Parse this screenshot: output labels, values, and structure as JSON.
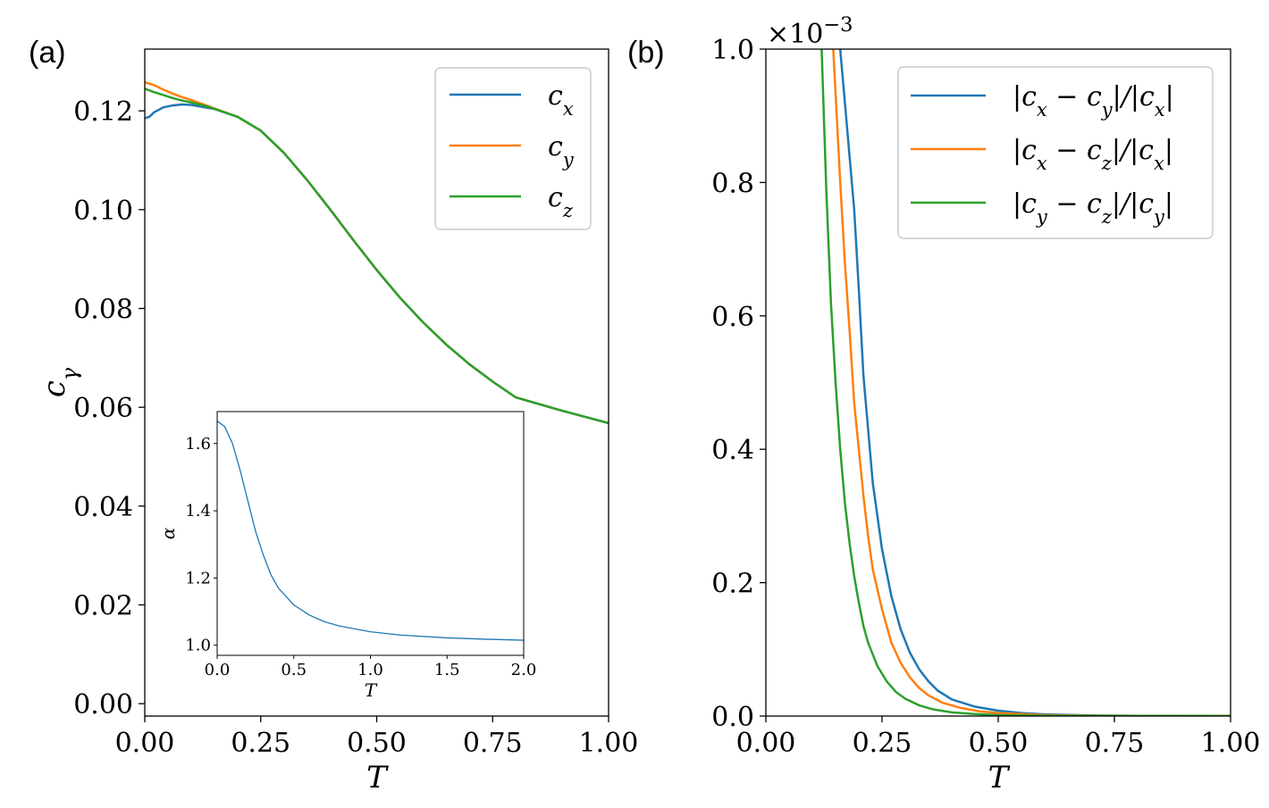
{
  "panels": {
    "a": {
      "label": "(a)"
    },
    "b": {
      "label": "(b)"
    }
  },
  "colors": {
    "blue": "#1f77b4",
    "orange": "#ff7f0e",
    "green": "#2ca02c"
  },
  "chart_data": [
    {
      "id": "a",
      "type": "line",
      "title": "",
      "xlabel": "T",
      "ylabel": "c_γ",
      "xlim": [
        0,
        1
      ],
      "ylim": [
        -0.0025,
        0.1325
      ],
      "xticks": [
        0,
        0.25,
        0.5,
        0.75,
        1
      ],
      "xtick_labels": [
        "0.00",
        "0.25",
        "0.50",
        "0.75",
        "1.00"
      ],
      "yticks": [
        0,
        0.02,
        0.04,
        0.06,
        0.08,
        0.1,
        0.12
      ],
      "ytick_labels": [
        "0.00",
        "0.02",
        "0.04",
        "0.06",
        "0.08",
        "0.10",
        "0.12"
      ],
      "legend_position": "top-right",
      "series": [
        {
          "name": "c_x",
          "color": "#1f77b4",
          "points": [
            [
              0,
              0.1185
            ],
            [
              0.01,
              0.1188
            ],
            [
              0.02,
              0.1197
            ],
            [
              0.04,
              0.1207
            ],
            [
              0.06,
              0.1211
            ],
            [
              0.08,
              0.1213
            ],
            [
              0.1,
              0.1212
            ],
            [
              0.13,
              0.1207
            ],
            [
              0.15,
              0.1204
            ],
            [
              0.2,
              0.1188
            ],
            [
              0.25,
              0.116
            ],
            [
              0.3,
              0.1115
            ],
            [
              0.35,
              0.106
            ],
            [
              0.4,
              0.1
            ],
            [
              0.45,
              0.0938
            ],
            [
              0.5,
              0.0878
            ],
            [
              0.55,
              0.0822
            ],
            [
              0.6,
              0.0772
            ],
            [
              0.65,
              0.0727
            ],
            [
              0.7,
              0.0687
            ],
            [
              0.75,
              0.0652
            ],
            [
              0.8,
              0.062
            ],
            [
              0.9,
              0.0593
            ],
            [
              1.0,
              0.0568
            ]
          ]
        },
        {
          "name": "c_y",
          "color": "#ff7f0e",
          "points": [
            [
              0,
              0.1258
            ],
            [
              0.02,
              0.1252
            ],
            [
              0.04,
              0.1243
            ],
            [
              0.06,
              0.1235
            ],
            [
              0.08,
              0.1228
            ],
            [
              0.1,
              0.1222
            ],
            [
              0.13,
              0.1212
            ],
            [
              0.15,
              0.1205
            ],
            [
              0.2,
              0.1188
            ],
            [
              0.25,
              0.116
            ],
            [
              0.3,
              0.1115
            ],
            [
              0.35,
              0.106
            ],
            [
              0.4,
              0.1
            ],
            [
              0.45,
              0.0938
            ],
            [
              0.5,
              0.0878
            ],
            [
              0.55,
              0.0822
            ],
            [
              0.6,
              0.0772
            ],
            [
              0.65,
              0.0727
            ],
            [
              0.7,
              0.0687
            ],
            [
              0.75,
              0.0652
            ],
            [
              0.8,
              0.062
            ],
            [
              0.9,
              0.0593
            ],
            [
              1.0,
              0.0568
            ]
          ]
        },
        {
          "name": "c_z",
          "color": "#2ca02c",
          "points": [
            [
              0,
              0.1245
            ],
            [
              0.02,
              0.1238
            ],
            [
              0.04,
              0.1232
            ],
            [
              0.06,
              0.1226
            ],
            [
              0.08,
              0.1221
            ],
            [
              0.1,
              0.1217
            ],
            [
              0.13,
              0.121
            ],
            [
              0.15,
              0.1204
            ],
            [
              0.2,
              0.1188
            ],
            [
              0.25,
              0.116
            ],
            [
              0.3,
              0.1115
            ],
            [
              0.35,
              0.106
            ],
            [
              0.4,
              0.1
            ],
            [
              0.45,
              0.0938
            ],
            [
              0.5,
              0.0878
            ],
            [
              0.55,
              0.0822
            ],
            [
              0.6,
              0.0772
            ],
            [
              0.65,
              0.0727
            ],
            [
              0.7,
              0.0687
            ],
            [
              0.75,
              0.0652
            ],
            [
              0.8,
              0.062
            ],
            [
              0.9,
              0.0593
            ],
            [
              1.0,
              0.0568
            ]
          ]
        }
      ]
    },
    {
      "id": "a-inset",
      "type": "line",
      "xlabel": "T",
      "ylabel": "α",
      "xlim": [
        0,
        2
      ],
      "ylim": [
        0.97,
        1.695
      ],
      "xticks": [
        0,
        0.5,
        1,
        1.5,
        2
      ],
      "xtick_labels": [
        "0.0",
        "0.5",
        "1.0",
        "1.5",
        "2.0"
      ],
      "yticks": [
        1.0,
        1.2,
        1.4,
        1.6
      ],
      "ytick_labels": [
        "1.0",
        "1.2",
        "1.4",
        "1.6"
      ],
      "series": [
        {
          "name": "alpha",
          "color": "#1f77b4",
          "points": [
            [
              0,
              1.667
            ],
            [
              0.05,
              1.65
            ],
            [
              0.1,
              1.6
            ],
            [
              0.15,
              1.52
            ],
            [
              0.2,
              1.43
            ],
            [
              0.25,
              1.34
            ],
            [
              0.3,
              1.27
            ],
            [
              0.35,
              1.21
            ],
            [
              0.4,
              1.17
            ],
            [
              0.5,
              1.12
            ],
            [
              0.6,
              1.09
            ],
            [
              0.7,
              1.07
            ],
            [
              0.8,
              1.057
            ],
            [
              1.0,
              1.04
            ],
            [
              1.2,
              1.03
            ],
            [
              1.5,
              1.022
            ],
            [
              1.75,
              1.018
            ],
            [
              2.0,
              1.015
            ]
          ]
        }
      ]
    },
    {
      "id": "b",
      "type": "line",
      "xlabel": "T",
      "ylabel": "",
      "multiplier_label": "×10",
      "multiplier_exponent": "−3",
      "xlim": [
        0,
        1
      ],
      "ylim": [
        0,
        1.0
      ],
      "xticks": [
        0,
        0.25,
        0.5,
        0.75,
        1
      ],
      "xtick_labels": [
        "0.00",
        "0.25",
        "0.50",
        "0.75",
        "1.00"
      ],
      "yticks": [
        0,
        0.2,
        0.4,
        0.6,
        0.8,
        1.0
      ],
      "ytick_labels": [
        "0.0",
        "0.2",
        "0.4",
        "0.6",
        "0.8",
        "1.0"
      ],
      "legend_position": "top-right",
      "series": [
        {
          "name": "|c_x − c_y|/|c_x|",
          "color": "#1f77b4",
          "points": [
            [
              0.16,
              1.0
            ],
            [
              0.19,
              0.76
            ],
            [
              0.2,
              0.64
            ],
            [
              0.21,
              0.51
            ],
            [
              0.22,
              0.43
            ],
            [
              0.23,
              0.35
            ],
            [
              0.25,
              0.25
            ],
            [
              0.27,
              0.18
            ],
            [
              0.29,
              0.13
            ],
            [
              0.31,
              0.095
            ],
            [
              0.33,
              0.07
            ],
            [
              0.35,
              0.052
            ],
            [
              0.37,
              0.038
            ],
            [
              0.4,
              0.025
            ],
            [
              0.45,
              0.014
            ],
            [
              0.5,
              0.008
            ],
            [
              0.55,
              0.0045
            ],
            [
              0.6,
              0.0025
            ],
            [
              0.7,
              0.0008
            ],
            [
              0.8,
              0.0003
            ],
            [
              1.0,
              0.0001
            ]
          ]
        },
        {
          "name": "|c_x − c_z|/|c_x|",
          "color": "#ff7f0e",
          "points": [
            [
              0.145,
              1.0
            ],
            [
              0.16,
              0.8
            ],
            [
              0.17,
              0.68
            ],
            [
              0.18,
              0.58
            ],
            [
              0.19,
              0.47
            ],
            [
              0.2,
              0.4
            ],
            [
              0.21,
              0.33
            ],
            [
              0.22,
              0.27
            ],
            [
              0.23,
              0.22
            ],
            [
              0.25,
              0.16
            ],
            [
              0.27,
              0.11
            ],
            [
              0.29,
              0.08
            ],
            [
              0.31,
              0.058
            ],
            [
              0.33,
              0.042
            ],
            [
              0.35,
              0.031
            ],
            [
              0.38,
              0.02
            ],
            [
              0.42,
              0.012
            ],
            [
              0.46,
              0.007
            ],
            [
              0.5,
              0.0045
            ],
            [
              0.6,
              0.0015
            ],
            [
              0.7,
              0.0005
            ],
            [
              1.0,
              0.0001
            ]
          ]
        },
        {
          "name": "|c_y − c_z|/|c_y|",
          "color": "#2ca02c",
          "points": [
            [
              0.12,
              1.0
            ],
            [
              0.13,
              0.79
            ],
            [
              0.14,
              0.62
            ],
            [
              0.15,
              0.5
            ],
            [
              0.16,
              0.4
            ],
            [
              0.17,
              0.32
            ],
            [
              0.18,
              0.26
            ],
            [
              0.19,
              0.21
            ],
            [
              0.2,
              0.17
            ],
            [
              0.21,
              0.135
            ],
            [
              0.22,
              0.11
            ],
            [
              0.24,
              0.075
            ],
            [
              0.26,
              0.052
            ],
            [
              0.28,
              0.036
            ],
            [
              0.3,
              0.026
            ],
            [
              0.33,
              0.016
            ],
            [
              0.36,
              0.01
            ],
            [
              0.4,
              0.0055
            ],
            [
              0.45,
              0.003
            ],
            [
              0.5,
              0.0015
            ],
            [
              0.6,
              0.0005
            ],
            [
              1.0,
              0.0001
            ]
          ]
        }
      ]
    }
  ]
}
